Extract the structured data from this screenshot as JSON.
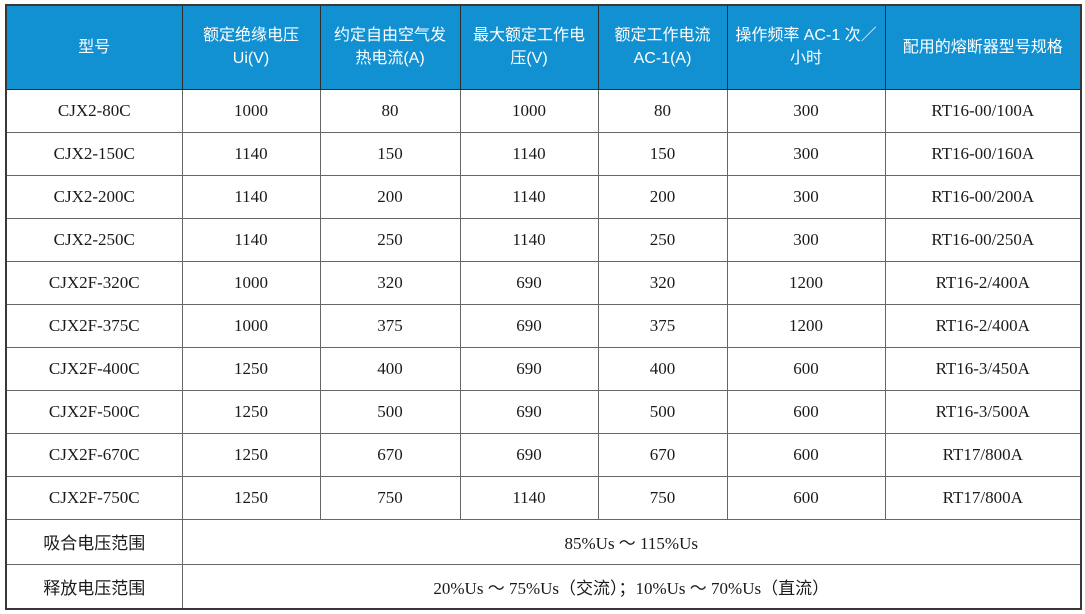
{
  "page": {
    "background": "#FFFFFF"
  },
  "table": {
    "columns": [
      {
        "label": "型号"
      },
      {
        "label": "额定绝缘电压 Ui(V)"
      },
      {
        "label": "约定自由空气发热电流(A)"
      },
      {
        "label": "最大额定工作电压(V)"
      },
      {
        "label": "额定工作电流 AC-1(A)"
      },
      {
        "label": "操作频率 AC-1 次／小时"
      },
      {
        "label": "配用的熔断器型号规格"
      }
    ],
    "rows": [
      [
        "CJX2-80C",
        "1000",
        "80",
        "1000",
        "80",
        "300",
        "RT16-00/100A"
      ],
      [
        "CJX2-150C",
        "1140",
        "150",
        "1140",
        "150",
        "300",
        "RT16-00/160A"
      ],
      [
        "CJX2-200C",
        "1140",
        "200",
        "1140",
        "200",
        "300",
        "RT16-00/200A"
      ],
      [
        "CJX2-250C",
        "1140",
        "250",
        "1140",
        "250",
        "300",
        "RT16-00/250A"
      ],
      [
        "CJX2F-320C",
        "1000",
        "320",
        "690",
        "320",
        "1200",
        "RT16-2/400A"
      ],
      [
        "CJX2F-375C",
        "1000",
        "375",
        "690",
        "375",
        "1200",
        "RT16-2/400A"
      ],
      [
        "CJX2F-400C",
        "1250",
        "400",
        "690",
        "400",
        "600",
        "RT16-3/450A"
      ],
      [
        "CJX2F-500C",
        "1250",
        "500",
        "690",
        "500",
        "600",
        "RT16-3/500A"
      ],
      [
        "CJX2F-670C",
        "1250",
        "670",
        "690",
        "670",
        "600",
        "RT17/800A"
      ],
      [
        "CJX2F-750C",
        "1250",
        "750",
        "1140",
        "750",
        "600",
        "RT17/800A"
      ]
    ],
    "footer_rows": [
      {
        "label": "吸合电压范围",
        "value": "85%Us ～ 115%Us"
      },
      {
        "label": "释放电压范围",
        "value": "20%Us ～ 75%Us（交流）；10%Us ～ 70%Us（直流）"
      }
    ],
    "colors": {
      "header_bg": "#1191D2",
      "header_text": "#FFFFFF",
      "body_text": "#1A1A1A",
      "grid_line": "#666666",
      "outer_border": "#383838"
    }
  }
}
